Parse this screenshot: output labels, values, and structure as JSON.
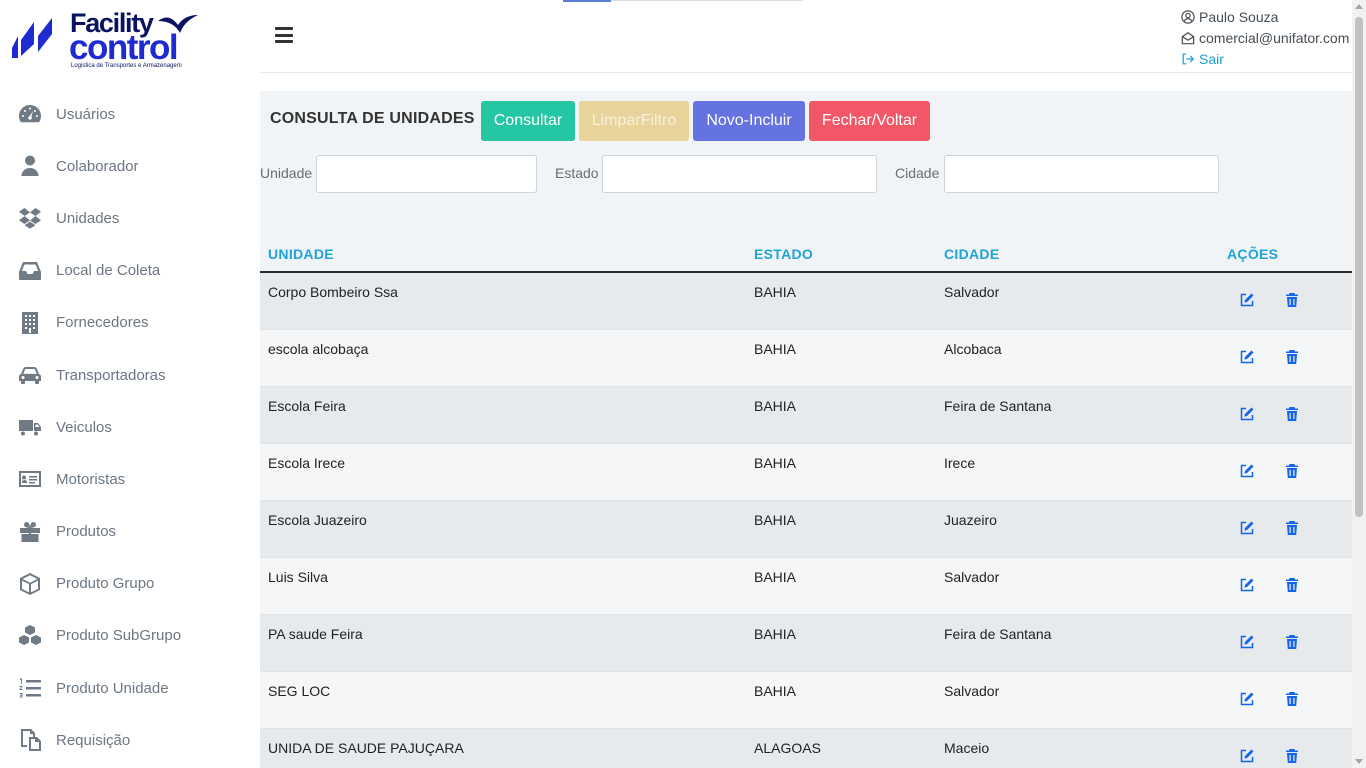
{
  "brand": {
    "name_line1": "Facility",
    "name_line2": "control",
    "tagline": "Logistica de Transportes e Armazenagem"
  },
  "sidebar": {
    "items": [
      {
        "label": "Usuários",
        "icon": "dashboard-gauge-icon"
      },
      {
        "label": "Colaborador",
        "icon": "user-icon"
      },
      {
        "label": "Unidades",
        "icon": "dropbox-icon"
      },
      {
        "label": "Local de Coleta",
        "icon": "inbox-icon"
      },
      {
        "label": "Fornecedores",
        "icon": "building-icon"
      },
      {
        "label": "Transportadoras",
        "icon": "car-icon"
      },
      {
        "label": "Veiculos",
        "icon": "truck-icon"
      },
      {
        "label": "Motoristas",
        "icon": "id-card-icon"
      },
      {
        "label": "Produtos",
        "icon": "gift-icon"
      },
      {
        "label": "Produto Grupo",
        "icon": "cube-icon"
      },
      {
        "label": "Produto SubGrupo",
        "icon": "cubes-icon"
      },
      {
        "label": "Produto Unidade",
        "icon": "list-ol-icon"
      },
      {
        "label": "Requisição",
        "icon": "copy-icon"
      }
    ]
  },
  "header": {
    "user_name": "Paulo Souza",
    "user_email": "comercial@unifator.com",
    "logout_label": "Sair"
  },
  "page": {
    "title": "CONSULTA DE UNIDADES",
    "buttons": {
      "consultar": "Consultar",
      "limpar": "LimparFiltro",
      "novo": "Novo-Incluir",
      "fechar": "Fechar/Voltar"
    },
    "filters": {
      "unidade_label": "Unidade",
      "unidade_value": "",
      "estado_label": "Estado",
      "estado_value": "",
      "cidade_label": "Cidade",
      "cidade_value": ""
    }
  },
  "table": {
    "columns": [
      "UNIDADE",
      "ESTADO",
      "CIDADE",
      "AÇÕES"
    ],
    "rows": [
      [
        "Corpo Bombeiro Ssa",
        "BAHIA",
        "Salvador"
      ],
      [
        "escola alcobaça",
        "BAHIA",
        "Alcobaca"
      ],
      [
        "Escola Feira",
        "BAHIA",
        "Feira de Santana"
      ],
      [
        "Escola Irece",
        "BAHIA",
        "Irece"
      ],
      [
        "Escola Juazeiro",
        "BAHIA",
        "Juazeiro"
      ],
      [
        "Luis Silva",
        "BAHIA",
        "Salvador"
      ],
      [
        "PA saude Feira",
        "BAHIA",
        "Feira de Santana"
      ],
      [
        "SEG LOC",
        "BAHIA",
        "Salvador"
      ],
      [
        "UNIDA DE SAUDE PAJUÇARA",
        "ALAGOAS",
        "Maceio"
      ]
    ]
  },
  "colors": {
    "accent_header": "#1ea4d9",
    "btn_consultar": "#24c6a3",
    "btn_limpar": "#e8d49a",
    "btn_novo": "#6472e2",
    "btn_fechar": "#f25767",
    "brand_blue": "#1e2bd1",
    "action_blue": "#1565e8"
  }
}
